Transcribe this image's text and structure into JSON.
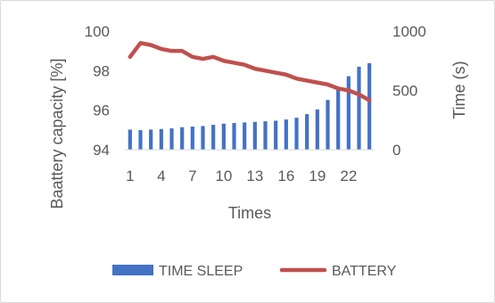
{
  "chart_data": {
    "type": "bar+line",
    "categories": [
      1,
      2,
      3,
      4,
      5,
      6,
      7,
      8,
      9,
      10,
      11,
      12,
      13,
      14,
      15,
      16,
      17,
      18,
      19,
      20,
      21,
      22,
      23,
      24
    ],
    "x_tick_labels": [
      "1",
      "4",
      "7",
      "10",
      "13",
      "16",
      "19",
      "22"
    ],
    "xlabel": "Times",
    "y_left": {
      "label": "Baattery  capacity [%]",
      "ticks": [
        "94",
        "96",
        "98",
        "100"
      ],
      "lim": [
        94,
        100
      ]
    },
    "y_right": {
      "label": "Time (s)",
      "ticks": [
        "0",
        "500",
        "1000"
      ],
      "lim": [
        0,
        1000
      ]
    },
    "series": [
      {
        "name": "TIME SLEEP",
        "kind": "bar",
        "axis": "right",
        "color": "#4472c4",
        "values": [
          170,
          165,
          170,
          175,
          180,
          190,
          195,
          200,
          210,
          220,
          225,
          230,
          235,
          240,
          245,
          255,
          270,
          300,
          340,
          420,
          520,
          620,
          700,
          730
        ]
      },
      {
        "name": "BATTERY",
        "kind": "line",
        "axis": "left",
        "color": "#c0504d",
        "values": [
          98.7,
          99.4,
          99.3,
          99.1,
          99.0,
          99.0,
          98.7,
          98.6,
          98.7,
          98.5,
          98.4,
          98.3,
          98.1,
          98.0,
          97.9,
          97.8,
          97.6,
          97.5,
          97.4,
          97.3,
          97.1,
          97.0,
          96.8,
          96.5
        ]
      }
    ],
    "grid": false,
    "legend_position": "bottom"
  }
}
